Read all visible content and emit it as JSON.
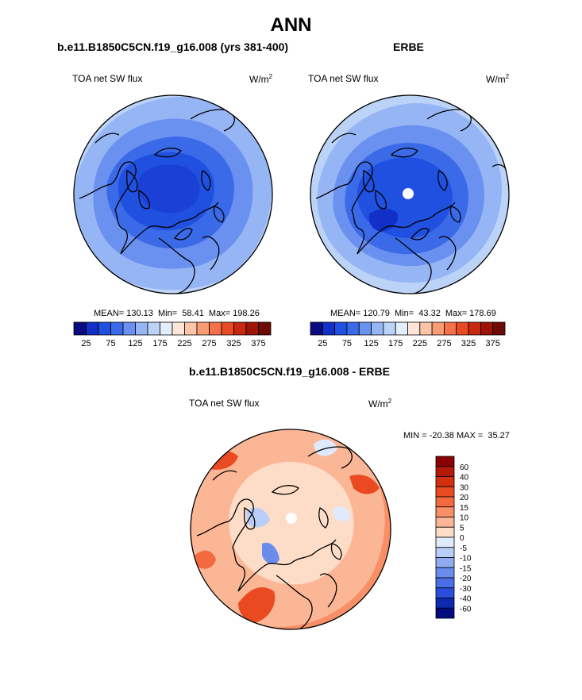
{
  "page": {
    "title": "ANN",
    "left_case": "b.e11.B1850C5CN.f19_g16.008 (yrs 381-400)",
    "right_case": "ERBE",
    "diff_title": "b.e11.B1850C5CN.f19_g16.008 - ERBE"
  },
  "panels": {
    "model": {
      "variable": "TOA net SW flux",
      "units": "W/m",
      "units_exp": "2",
      "stats": "MEAN= 130.13  Min=  58.41  Max= 198.26"
    },
    "obs": {
      "variable": "TOA net SW flux",
      "units": "W/m",
      "units_exp": "2",
      "stats": "MEAN= 120.79  Min=  43.32  Max= 178.69"
    },
    "diff": {
      "variable": "TOA net SW flux",
      "units": "W/m",
      "units_exp": "2",
      "stats": "MIN = -20.38 MAX =  35.27"
    }
  },
  "colorbar_abs": {
    "labels": [
      "25",
      "75",
      "125",
      "175",
      "225",
      "275",
      "325",
      "375"
    ],
    "colors": [
      "#0b0b80",
      "#1230c8",
      "#2050e0",
      "#3a6ae8",
      "#6a90f0",
      "#95b5f5",
      "#bcd3f8",
      "#e3eefb",
      "#fde6d8",
      "#fbc4a6",
      "#f89c74",
      "#f4714a",
      "#e84a23",
      "#c8280f",
      "#9e1508",
      "#700a05"
    ]
  },
  "colorbar_diff": {
    "labels": [
      "60",
      "40",
      "30",
      "20",
      "15",
      "10",
      "5",
      "0",
      "-5",
      "-10",
      "-15",
      "-20",
      "-30",
      "-40",
      "-60"
    ],
    "colors": [
      "#8b0000",
      "#b21a05",
      "#d2300f",
      "#ea4a22",
      "#f46a40",
      "#f98f66",
      "#fbb696",
      "#fdddc8",
      "#dfeafc",
      "#b8cdf7",
      "#8facf2",
      "#6a8ded",
      "#4a6ee5",
      "#2a4edb",
      "#0b2ab0",
      "#040a80"
    ]
  }
}
